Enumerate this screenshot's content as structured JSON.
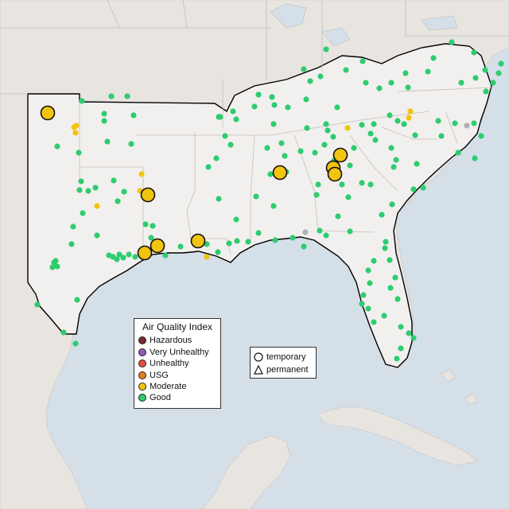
{
  "legend": {
    "title": "Air Quality Index",
    "items": [
      {
        "label": "Hazardous",
        "color": "#7b2a2a"
      },
      {
        "label": "Very Unhealthy",
        "color": "#9b59b6"
      },
      {
        "label": "Unhealthy",
        "color": "#e74c3c"
      },
      {
        "label": "USG",
        "color": "#e67e22"
      },
      {
        "label": "Moderate",
        "color": "#f1c40f"
      },
      {
        "label": "Good",
        "color": "#2ecc71"
      }
    ]
  },
  "shape_legend": {
    "items": [
      {
        "label": "temporary",
        "icon": "circle-icon"
      },
      {
        "label": "permanent",
        "icon": "triangle-icon"
      }
    ]
  },
  "colors": {
    "water": "#d4dfe8",
    "land": "#ece8e4",
    "highlight_land": "#f2f0ee",
    "good": "#2ecc71",
    "moderate": "#f1c40f",
    "no_data": "#b0b0b0"
  }
}
